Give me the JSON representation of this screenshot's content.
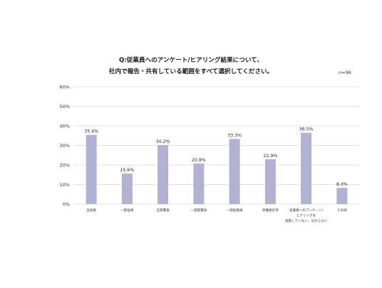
{
  "chart_data": {
    "type": "bar",
    "title_lines": [
      "Q:従業員へのアンケート/ヒアリング結果について、",
      "社内で報告・共有している範囲をすべて選択してください。"
    ],
    "sample_note": "n=96",
    "categories": [
      [
        "全従員"
      ],
      [
        "一部従員"
      ],
      [
        "全部署長"
      ],
      [
        "一部部署長"
      ],
      [
        "一部従業員"
      ],
      [
        "労働組合等"
      ],
      [
        "従業員へのアンケート/",
        "ヒアリングを",
        "実施していない、分からない"
      ],
      [
        "その他"
      ]
    ],
    "values": [
      35.4,
      15.6,
      30.2,
      20.8,
      33.3,
      22.9,
      36.5,
      8.3
    ],
    "value_labels": [
      "35.4%",
      "15.6%",
      "30.2%",
      "20.8%",
      "33.3%",
      "22.9%",
      "36.5%",
      "8.3%"
    ],
    "y_ticks": [
      "0%",
      "10%",
      "20%",
      "30%",
      "40%",
      "50%",
      "60%"
    ],
    "ylim": [
      0,
      60
    ],
    "grid": true,
    "legend": "none",
    "bar_color": "#b1b1d2",
    "grid_color": "#d9d9d9"
  }
}
